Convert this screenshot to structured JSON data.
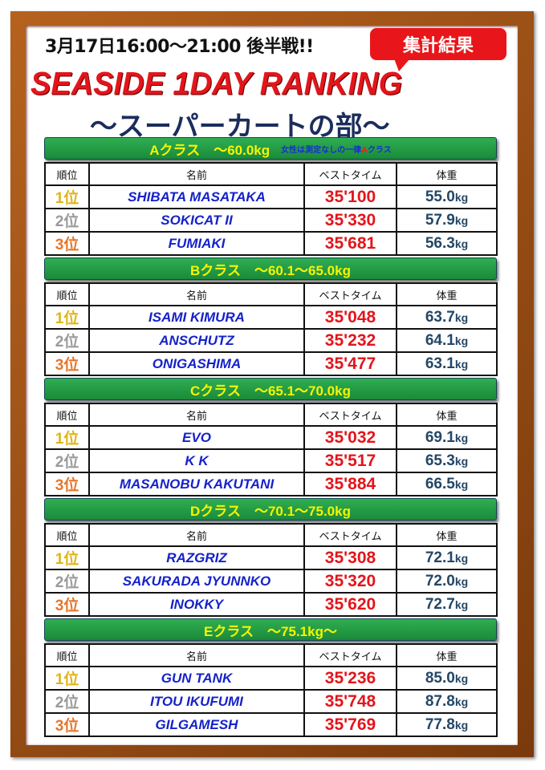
{
  "header": {
    "date": "3月17日16:00〜21:00 後半戦!!",
    "badge": "集計結果",
    "title": "SEASIDE 1DAY RANKING",
    "subtitle": "〜スーパーカートの部〜"
  },
  "columns": [
    "順位",
    "名前",
    "ベストタイム",
    "体重"
  ],
  "colors": {
    "rank1": "#e0b419",
    "rank2": "#9a9a9a",
    "rank3": "#e5762a",
    "name": "#1522c9",
    "time": "#e3151b",
    "banner": "#1f9a44"
  },
  "classes": [
    {
      "label": "Aクラス　〜60.0kg",
      "note_pre": "女性は測定なしの一律",
      "note_a": "A",
      "note_post": "クラス",
      "rows": [
        {
          "rank": "1位",
          "name": "SHIBATA MASATAKA",
          "time": "35'100",
          "weight": "55.0",
          "unit": "kg"
        },
        {
          "rank": "2位",
          "name": "SOKICAT II",
          "time": "35'330",
          "weight": "57.9",
          "unit": "kg"
        },
        {
          "rank": "3位",
          "name": "FUMIAKI",
          "time": "35'681",
          "weight": "56.3",
          "unit": "kg"
        }
      ]
    },
    {
      "label": "Bクラス　〜60.1〜65.0kg",
      "rows": [
        {
          "rank": "1位",
          "name": "ISAMI KIMURA",
          "time": "35'048",
          "weight": "63.7",
          "unit": "kg"
        },
        {
          "rank": "2位",
          "name": "ANSCHUTZ",
          "time": "35'232",
          "weight": "64.1",
          "unit": "kg"
        },
        {
          "rank": "3位",
          "name": "ONIGASHIMA",
          "time": "35'477",
          "weight": "63.1",
          "unit": "kg"
        }
      ]
    },
    {
      "label": "Cクラス　〜65.1〜70.0kg",
      "rows": [
        {
          "rank": "1位",
          "name": "EVO",
          "time": "35'032",
          "weight": "69.1",
          "unit": "kg"
        },
        {
          "rank": "2位",
          "name": "K K",
          "time": "35'517",
          "weight": "65.3",
          "unit": "kg"
        },
        {
          "rank": "3位",
          "name": "MASANOBU KAKUTANI",
          "time": "35'884",
          "weight": "66.5",
          "unit": "kg"
        }
      ]
    },
    {
      "label": "Dクラス　〜70.1〜75.0kg",
      "rows": [
        {
          "rank": "1位",
          "name": "RAZGRIZ",
          "time": "35'308",
          "weight": "72.1",
          "unit": "kg"
        },
        {
          "rank": "2位",
          "name": "SAKURADA JYUNNKO",
          "time": "35'320",
          "weight": "72.0",
          "unit": "kg"
        },
        {
          "rank": "3位",
          "name": "INOKKY",
          "time": "35'620",
          "weight": "72.7",
          "unit": "kg"
        }
      ]
    },
    {
      "label": "Eクラス　〜75.1kg〜",
      "rows": [
        {
          "rank": "1位",
          "name": "GUN TANK",
          "time": "35'236",
          "weight": "85.0",
          "unit": "kg"
        },
        {
          "rank": "2位",
          "name": "ITOU IKUFUMI",
          "time": "35'748",
          "weight": "87.8",
          "unit": "kg"
        },
        {
          "rank": "3位",
          "name": "GILGAMESH",
          "time": "35'769",
          "weight": "77.8",
          "unit": "kg"
        }
      ]
    }
  ]
}
